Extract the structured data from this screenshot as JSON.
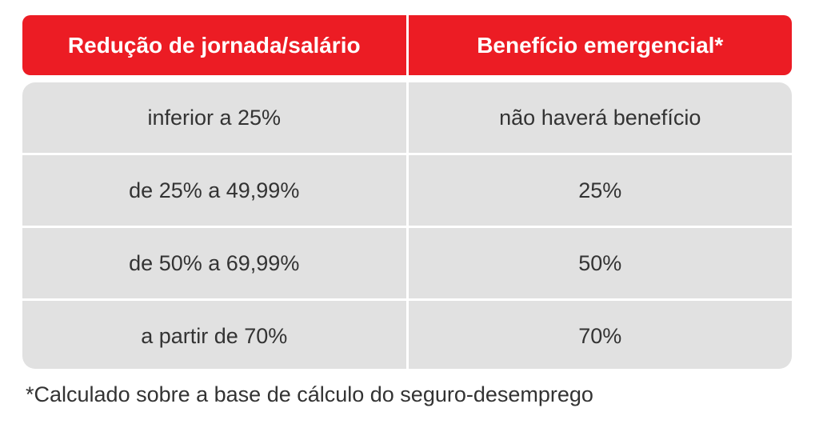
{
  "colors": {
    "header_background": "#ec1c24",
    "row_background": "#e1e1e1",
    "text": "#333333"
  },
  "table": {
    "headers": [
      "Redução de jornada/salário",
      "Benefício emergencial*"
    ],
    "rows": [
      [
        "inferior a 25%",
        "não haverá benefício"
      ],
      [
        "de 25% a 49,99%",
        "25%"
      ],
      [
        "de 50% a 69,99%",
        "50%"
      ],
      [
        "a partir de 70%",
        "70%"
      ]
    ]
  },
  "footnote": "*Calculado sobre a base de cálculo do seguro-desemprego"
}
